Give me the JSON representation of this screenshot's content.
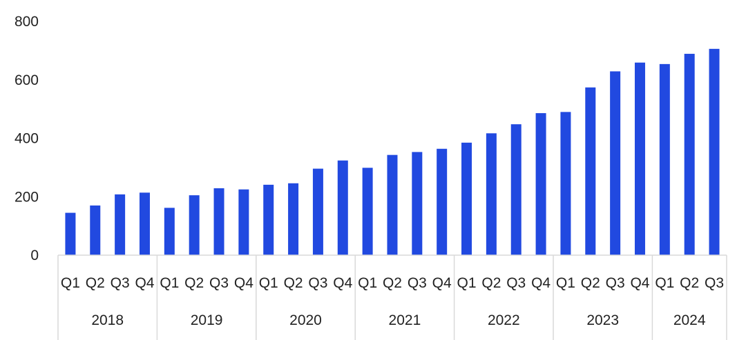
{
  "chart_data": {
    "type": "bar",
    "title": "",
    "xlabel": "",
    "ylabel": "",
    "ylim": [
      0,
      800
    ],
    "yticks": [
      "0",
      "200",
      "400",
      "600",
      "800"
    ],
    "grid": false,
    "bar_color": "#2149e0",
    "axis_color": "#d9d9d9",
    "groups": [
      {
        "year": "2018",
        "quarters": [
          "Q1",
          "Q2",
          "Q3",
          "Q4"
        ],
        "values": [
          145,
          170,
          208,
          214
        ]
      },
      {
        "year": "2019",
        "quarters": [
          "Q1",
          "Q2",
          "Q3",
          "Q4"
        ],
        "values": [
          162,
          205,
          229,
          225
        ]
      },
      {
        "year": "2020",
        "quarters": [
          "Q1",
          "Q2",
          "Q3",
          "Q4"
        ],
        "values": [
          241,
          246,
          296,
          324
        ]
      },
      {
        "year": "2021",
        "quarters": [
          "Q1",
          "Q2",
          "Q3",
          "Q4"
        ],
        "values": [
          299,
          343,
          353,
          364
        ]
      },
      {
        "year": "2022",
        "quarters": [
          "Q1",
          "Q2",
          "Q3",
          "Q4"
        ],
        "values": [
          385,
          417,
          448,
          486
        ]
      },
      {
        "year": "2023",
        "quarters": [
          "Q1",
          "Q2",
          "Q3",
          "Q4"
        ],
        "values": [
          490,
          574,
          629,
          659
        ]
      },
      {
        "year": "2024",
        "quarters": [
          "Q1",
          "Q2",
          "Q3"
        ],
        "values": [
          654,
          689,
          706
        ]
      }
    ]
  }
}
